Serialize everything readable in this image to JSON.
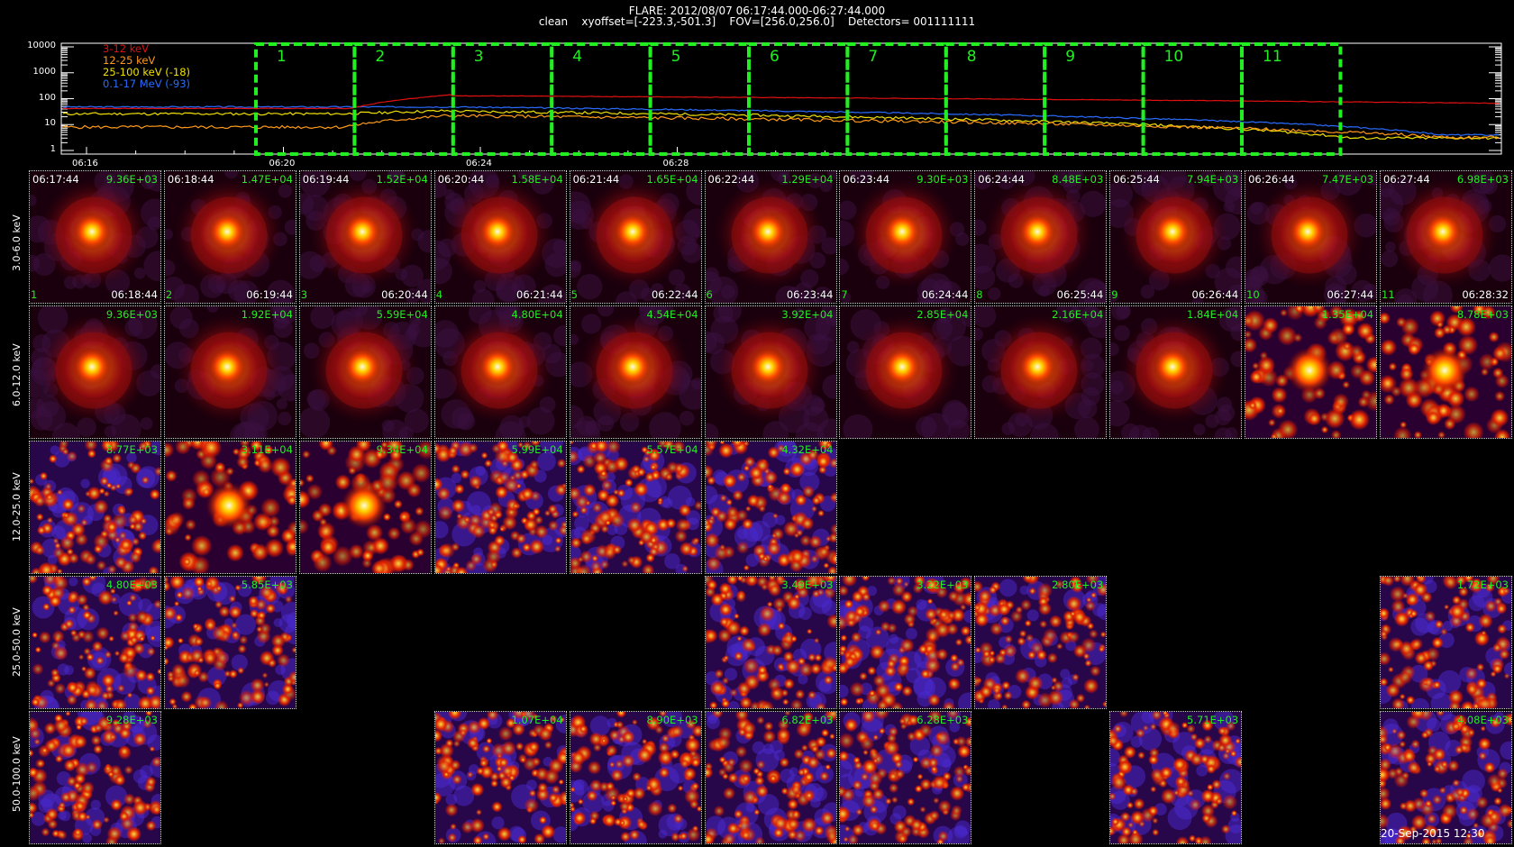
{
  "header": {
    "line1": "FLARE: 2012/08/07 06:17:44.000-06:27:44.000",
    "line2": "clean    xyoffset=[-223.3,-501.3]    FOV=[256.0,256.0]    Detectors= 001111111"
  },
  "lightcurve": {
    "legend": [
      {
        "label": "3-12 keV",
        "color": "#e01010"
      },
      {
        "label": "12-25 keV",
        "color": "#ff9a1a"
      },
      {
        "label": "25-100 keV (-18)",
        "color": "#f0e000"
      },
      {
        "label": "0.1-17 MeV (-93)",
        "color": "#2a6cff"
      }
    ],
    "yticks": [
      "10000",
      "1000",
      "100",
      "10",
      "1"
    ],
    "xticks": [
      "06:16",
      "06:20",
      "06:24",
      "06:28"
    ],
    "intervals": [
      "1",
      "2",
      "3",
      "4",
      "5",
      "6",
      "7",
      "8",
      "9",
      "10",
      "11"
    ],
    "box_color": "#22ee22"
  },
  "energy_bands": [
    "3.0-6.0 keV",
    "6.0-12.0 keV",
    "12.0-25.0 keV",
    "25.0-50.0 keV",
    "50.0-100.0 keV"
  ],
  "start_times": [
    "06:17:44",
    "06:18:44",
    "06:19:44",
    "06:20:44",
    "06:21:44",
    "06:22:44",
    "06:23:44",
    "06:24:44",
    "06:25:44",
    "06:26:44",
    "06:27:44"
  ],
  "end_times": [
    "06:18:44",
    "06:19:44",
    "06:20:44",
    "06:21:44",
    "06:22:44",
    "06:23:44",
    "06:24:44",
    "06:25:44",
    "06:26:44",
    "06:27:44",
    "06:28:32"
  ],
  "images": [
    {
      "row": 0,
      "col": 0,
      "peak": "9.36E+03",
      "kind": "source"
    },
    {
      "row": 0,
      "col": 1,
      "peak": "1.47E+04",
      "kind": "source"
    },
    {
      "row": 0,
      "col": 2,
      "peak": "1.52E+04",
      "kind": "source"
    },
    {
      "row": 0,
      "col": 3,
      "peak": "1.58E+04",
      "kind": "source"
    },
    {
      "row": 0,
      "col": 4,
      "peak": "1.65E+04",
      "kind": "source"
    },
    {
      "row": 0,
      "col": 5,
      "peak": "1.29E+04",
      "kind": "source"
    },
    {
      "row": 0,
      "col": 6,
      "peak": "9.30E+03",
      "kind": "source"
    },
    {
      "row": 0,
      "col": 7,
      "peak": "8.48E+03",
      "kind": "source"
    },
    {
      "row": 0,
      "col": 8,
      "peak": "7.94E+03",
      "kind": "source"
    },
    {
      "row": 0,
      "col": 9,
      "peak": "7.47E+03",
      "kind": "source"
    },
    {
      "row": 0,
      "col": 10,
      "peak": "6.98E+03",
      "kind": "source"
    },
    {
      "row": 1,
      "col": 0,
      "peak": "9.36E+03",
      "kind": "source"
    },
    {
      "row": 1,
      "col": 1,
      "peak": "1.92E+04",
      "kind": "source"
    },
    {
      "row": 1,
      "col": 2,
      "peak": "5.59E+04",
      "kind": "source"
    },
    {
      "row": 1,
      "col": 3,
      "peak": "4.80E+04",
      "kind": "source"
    },
    {
      "row": 1,
      "col": 4,
      "peak": "4.54E+04",
      "kind": "source"
    },
    {
      "row": 1,
      "col": 5,
      "peak": "3.92E+04",
      "kind": "source"
    },
    {
      "row": 1,
      "col": 6,
      "peak": "2.85E+04",
      "kind": "source"
    },
    {
      "row": 1,
      "col": 7,
      "peak": "2.16E+04",
      "kind": "source"
    },
    {
      "row": 1,
      "col": 8,
      "peak": "1.84E+04",
      "kind": "source"
    },
    {
      "row": 1,
      "col": 9,
      "peak": "1.35E+04",
      "kind": "noisy"
    },
    {
      "row": 1,
      "col": 10,
      "peak": "8.78E+03",
      "kind": "noisy"
    },
    {
      "row": 2,
      "col": 0,
      "peak": "8.77E+03",
      "kind": "noise"
    },
    {
      "row": 2,
      "col": 1,
      "peak": "3.11E+04",
      "kind": "noisy"
    },
    {
      "row": 2,
      "col": 2,
      "peak": "9.34E+04",
      "kind": "noisy"
    },
    {
      "row": 2,
      "col": 3,
      "peak": "5.99E+04",
      "kind": "noise"
    },
    {
      "row": 2,
      "col": 4,
      "peak": "5.57E+04",
      "kind": "noise"
    },
    {
      "row": 2,
      "col": 5,
      "peak": "4.32E+04",
      "kind": "noise"
    },
    {
      "row": 3,
      "col": 0,
      "peak": "4.80E+03",
      "kind": "noise"
    },
    {
      "row": 3,
      "col": 1,
      "peak": "5.85E+03",
      "kind": "noise"
    },
    {
      "row": 3,
      "col": 5,
      "peak": "3.49E+03",
      "kind": "noise"
    },
    {
      "row": 3,
      "col": 6,
      "peak": "3.22E+03",
      "kind": "noise"
    },
    {
      "row": 3,
      "col": 7,
      "peak": "2.80E+03",
      "kind": "noise"
    },
    {
      "row": 3,
      "col": 10,
      "peak": "1.72E+03",
      "kind": "noise"
    },
    {
      "row": 4,
      "col": 0,
      "peak": "9.28E+03",
      "kind": "noise"
    },
    {
      "row": 4,
      "col": 3,
      "peak": "1.07E+04",
      "kind": "noise"
    },
    {
      "row": 4,
      "col": 4,
      "peak": "8.90E+03",
      "kind": "noise"
    },
    {
      "row": 4,
      "col": 5,
      "peak": "6.82E+03",
      "kind": "noise"
    },
    {
      "row": 4,
      "col": 6,
      "peak": "6.28E+03",
      "kind": "noise"
    },
    {
      "row": 4,
      "col": 8,
      "peak": "5.71E+03",
      "kind": "noise"
    },
    {
      "row": 4,
      "col": 10,
      "peak": "4.08E+03",
      "kind": "noise"
    }
  ],
  "footer": {
    "timestamp": "20-Sep-2015 12:30"
  }
}
